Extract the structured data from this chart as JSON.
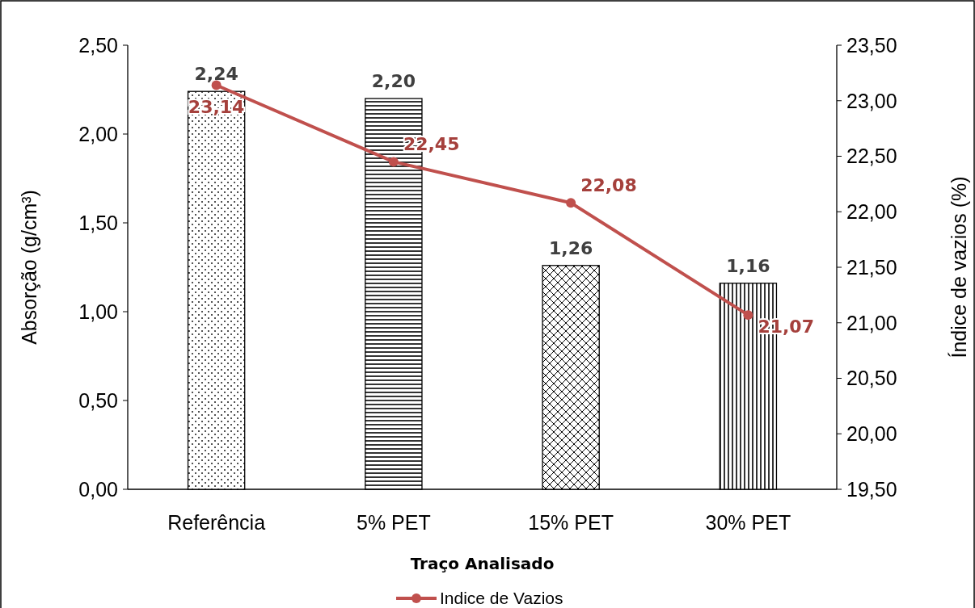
{
  "chart_data": {
    "type": "bar",
    "xlabel": "Traço Analisado",
    "ylabel": "Absorção (g/cm³)",
    "y2label": "Índice de vazios (%)",
    "categories": [
      "Referência",
      "5% PET",
      "15% PET",
      "30% PET"
    ],
    "series": [
      {
        "color": "#000000",
        "values": [
          2.24,
          2.2,
          1.26,
          1.16
        ],
        "value_labels": [
          "2,24",
          "2,20",
          "1,26",
          "1,16"
        ]
      },
      {
        "type": "line",
        "axis": "y2",
        "name": "Indice de Vazios",
        "color": "#c0504d",
        "values": [
          23.14,
          22.45,
          22.08,
          21.07
        ],
        "value_labels": [
          "23,14",
          "22,45",
          "22,08",
          "21,07"
        ]
      }
    ],
    "ylim": [
      0,
      2.5
    ],
    "yticks": [
      {
        "value": 0,
        "label": "0,00"
      },
      {
        "value": 0.5,
        "label": "0,50"
      },
      {
        "value": 1,
        "label": "1,00"
      },
      {
        "value": 1.5,
        "label": "1,50"
      },
      {
        "value": 2,
        "label": "2,00"
      },
      {
        "value": 2.5,
        "label": "2,50"
      }
    ],
    "y2lim": [
      19.5,
      23.5
    ],
    "y2ticks": [
      {
        "value": 19.5,
        "label": "19,50"
      },
      {
        "value": 20,
        "label": "20,00"
      },
      {
        "value": 20.5,
        "label": "20,50"
      },
      {
        "value": 21,
        "label": "21,00"
      },
      {
        "value": 21.5,
        "label": "21,50"
      },
      {
        "value": 22,
        "label": "22,00"
      },
      {
        "value": 22.5,
        "label": "22,50"
      },
      {
        "value": 23,
        "label": "23,00"
      },
      {
        "value": 23.5,
        "label": "23,50"
      }
    ],
    "marker": "circle",
    "legend": "bottom",
    "grid": false
  }
}
